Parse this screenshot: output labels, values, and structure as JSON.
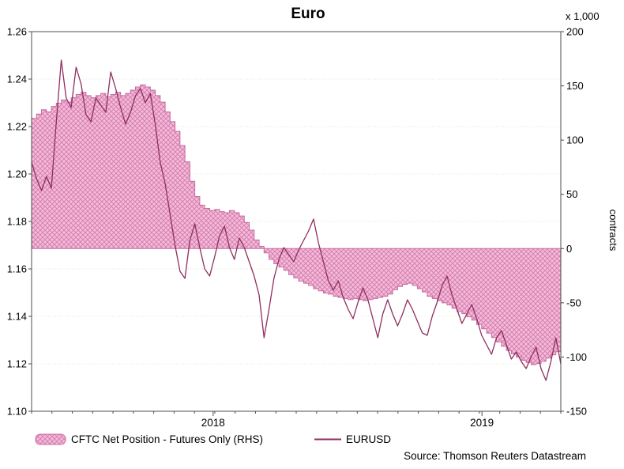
{
  "footer": {
    "source": "Source: Thomson Reuters Datastream"
  },
  "colors": {
    "line": "#8e2e60",
    "area_fill": "#f3bdd8",
    "area_hatch": "#d77fb2",
    "area_edge": "#c7689f",
    "grid": "#ece5cc",
    "axis": "#4d4d4d",
    "text": "#000000"
  },
  "chart_data": {
    "type": "line",
    "title": "Euro",
    "right_axis_unit": "x 1,000",
    "right_axis_title": "contracts",
    "legend_position": "bottom-left",
    "grid": true,
    "left_axis": {
      "min": 1.1,
      "max": 1.26,
      "ticks": [
        1.26,
        1.24,
        1.22,
        1.2,
        1.18,
        1.16,
        1.14,
        1.12,
        1.1
      ]
    },
    "right_axis": {
      "min": -150,
      "max": 200,
      "ticks": [
        200,
        150,
        100,
        50,
        0,
        -50,
        -100,
        -150
      ]
    },
    "x_axis": {
      "tick_labels": [
        "2018",
        "2019"
      ],
      "tick_positions": [
        0.343,
        0.851
      ]
    },
    "series": [
      {
        "name": "CFTC Net Position",
        "legend": "CFTC Net Position - Futures Only (RHS)",
        "axis": "right",
        "type": "area-step",
        "units": "thousand contracts",
        "values": [
          120,
          124,
          128,
          126,
          131,
          134,
          137,
          135,
          139,
          142,
          144,
          141,
          139,
          141,
          143,
          140,
          142,
          144,
          141,
          143,
          146,
          149,
          151,
          149,
          146,
          141,
          135,
          126,
          117,
          108,
          95,
          80,
          62,
          48,
          40,
          37,
          35,
          36,
          34,
          33,
          35,
          33,
          30,
          24,
          17,
          8,
          2,
          -4,
          -10,
          -14,
          -17,
          -20,
          -24,
          -27,
          -30,
          -32,
          -34,
          -37,
          -39,
          -41,
          -42,
          -44,
          -45,
          -46,
          -47,
          -46,
          -47,
          -48,
          -47,
          -46,
          -45,
          -44,
          -42,
          -38,
          -35,
          -33,
          -32,
          -34,
          -37,
          -40,
          -44,
          -46,
          -48,
          -50,
          -52,
          -55,
          -58,
          -60,
          -63,
          -66,
          -70,
          -74,
          -78,
          -82,
          -86,
          -90,
          -94,
          -97,
          -100,
          -103,
          -105,
          -107,
          -106,
          -104,
          -101,
          -98,
          -95,
          -92
        ]
      },
      {
        "name": "EURUSD",
        "legend": "EURUSD",
        "axis": "left",
        "type": "line",
        "values": [
          1.205,
          1.198,
          1.193,
          1.199,
          1.194,
          1.222,
          1.248,
          1.232,
          1.228,
          1.245,
          1.238,
          1.225,
          1.222,
          1.232,
          1.229,
          1.226,
          1.243,
          1.236,
          1.228,
          1.221,
          1.226,
          1.233,
          1.236,
          1.23,
          1.234,
          1.221,
          1.205,
          1.196,
          1.183,
          1.17,
          1.159,
          1.156,
          1.172,
          1.179,
          1.169,
          1.16,
          1.157,
          1.165,
          1.174,
          1.178,
          1.169,
          1.164,
          1.173,
          1.169,
          1.163,
          1.157,
          1.149,
          1.131,
          1.143,
          1.156,
          1.164,
          1.169,
          1.166,
          1.163,
          1.168,
          1.172,
          1.176,
          1.181,
          1.171,
          1.163,
          1.155,
          1.151,
          1.155,
          1.148,
          1.143,
          1.139,
          1.146,
          1.152,
          1.147,
          1.139,
          1.131,
          1.141,
          1.147,
          1.141,
          1.136,
          1.141,
          1.147,
          1.143,
          1.138,
          1.133,
          1.132,
          1.14,
          1.146,
          1.153,
          1.157,
          1.149,
          1.143,
          1.137,
          1.141,
          1.145,
          1.139,
          1.132,
          1.128,
          1.124,
          1.131,
          1.134,
          1.128,
          1.122,
          1.125,
          1.121,
          1.118,
          1.123,
          1.127,
          1.118,
          1.113,
          1.121,
          1.131,
          1.12
        ]
      }
    ]
  }
}
